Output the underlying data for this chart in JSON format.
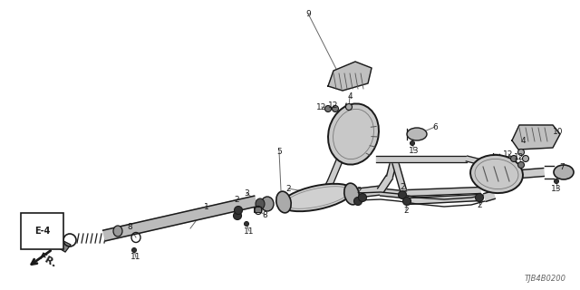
{
  "part_code": "TJB4B0200",
  "bg_color": "#ffffff",
  "lc": "#1a1a1a",
  "gc": "#777777",
  "fig_width": 6.4,
  "fig_height": 3.2,
  "dpi": 100
}
